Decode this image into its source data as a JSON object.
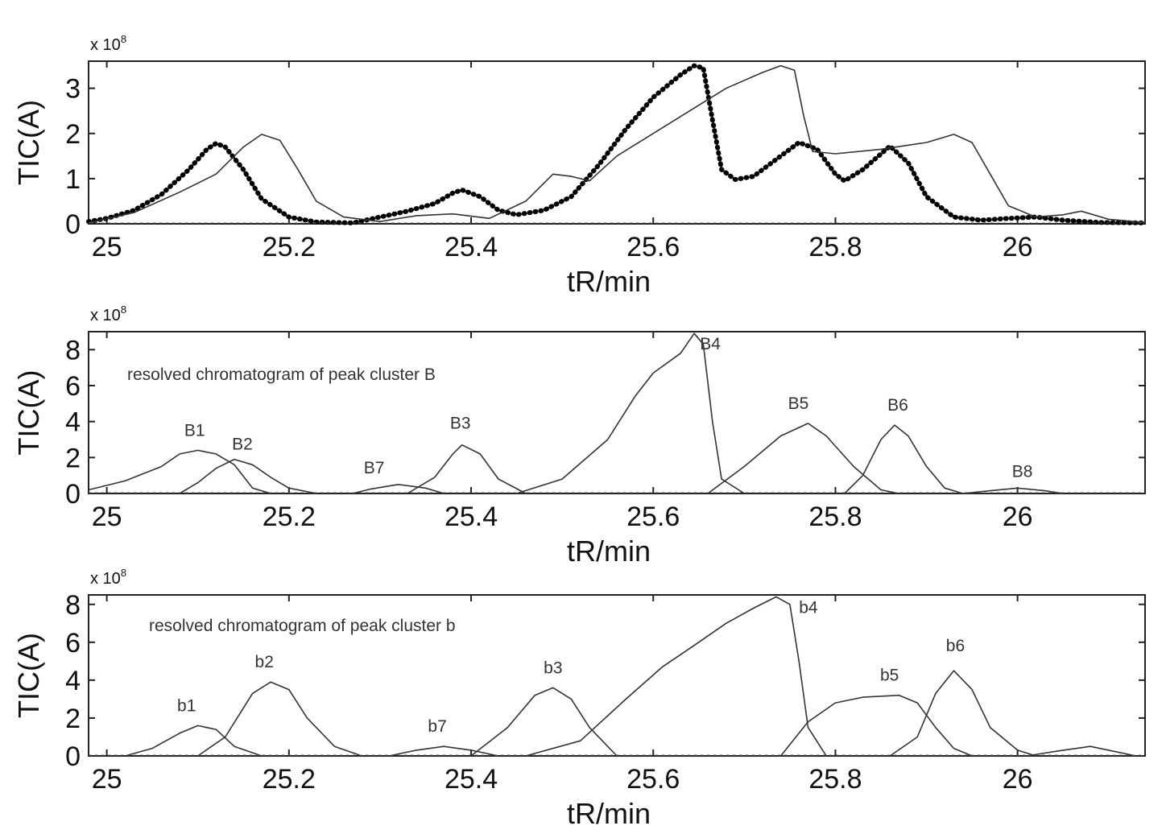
{
  "chart_data": [
    {
      "type": "line",
      "xlabel": "tR/min",
      "ylabel": "TIC(A)",
      "exponent_label": "x 10",
      "exponent_power": "8",
      "xlim": [
        24.98,
        26.14
      ],
      "ylim": [
        0,
        3.6
      ],
      "xticks": [
        25,
        25.2,
        25.4,
        25.6,
        25.8,
        26
      ],
      "xtick_labels": [
        "25",
        "25.2",
        "25.4",
        "25.6",
        "25.8",
        "26"
      ],
      "yticks": [
        0,
        1,
        2,
        3
      ],
      "ytick_labels": [
        "0",
        "1",
        "2",
        "3"
      ],
      "series": [
        {
          "style": "dots",
          "color": "#000000",
          "points": [
            [
              24.98,
              0.05
            ],
            [
              25.0,
              0.12
            ],
            [
              25.03,
              0.3
            ],
            [
              25.06,
              0.65
            ],
            [
              25.09,
              1.2
            ],
            [
              25.11,
              1.65
            ],
            [
              25.12,
              1.78
            ],
            [
              25.13,
              1.7
            ],
            [
              25.15,
              1.2
            ],
            [
              25.17,
              0.55
            ],
            [
              25.2,
              0.15
            ],
            [
              25.23,
              0.04
            ],
            [
              25.27,
              0.02
            ],
            [
              25.3,
              0.15
            ],
            [
              25.33,
              0.28
            ],
            [
              25.36,
              0.45
            ],
            [
              25.38,
              0.68
            ],
            [
              25.39,
              0.75
            ],
            [
              25.41,
              0.6
            ],
            [
              25.43,
              0.3
            ],
            [
              25.45,
              0.2
            ],
            [
              25.48,
              0.3
            ],
            [
              25.51,
              0.6
            ],
            [
              25.54,
              1.3
            ],
            [
              25.57,
              2.1
            ],
            [
              25.6,
              2.8
            ],
            [
              25.63,
              3.3
            ],
            [
              25.645,
              3.5
            ],
            [
              25.655,
              3.45
            ],
            [
              25.665,
              2.3
            ],
            [
              25.675,
              1.2
            ],
            [
              25.69,
              0.98
            ],
            [
              25.71,
              1.05
            ],
            [
              25.74,
              1.5
            ],
            [
              25.76,
              1.8
            ],
            [
              25.78,
              1.65
            ],
            [
              25.8,
              1.1
            ],
            [
              25.81,
              0.95
            ],
            [
              25.83,
              1.2
            ],
            [
              25.86,
              1.72
            ],
            [
              25.88,
              1.35
            ],
            [
              25.9,
              0.6
            ],
            [
              25.93,
              0.15
            ],
            [
              25.96,
              0.08
            ],
            [
              25.99,
              0.12
            ],
            [
              26.02,
              0.15
            ],
            [
              26.05,
              0.08
            ],
            [
              26.09,
              0.03
            ],
            [
              26.14,
              0.02
            ]
          ]
        },
        {
          "style": "line",
          "color": "#333333",
          "points": [
            [
              24.98,
              0.02
            ],
            [
              25.03,
              0.25
            ],
            [
              25.08,
              0.7
            ],
            [
              25.12,
              1.1
            ],
            [
              25.15,
              1.7
            ],
            [
              25.17,
              1.98
            ],
            [
              25.19,
              1.85
            ],
            [
              25.21,
              1.2
            ],
            [
              25.23,
              0.5
            ],
            [
              25.26,
              0.15
            ],
            [
              25.3,
              0.05
            ],
            [
              25.34,
              0.18
            ],
            [
              25.38,
              0.22
            ],
            [
              25.42,
              0.12
            ],
            [
              25.46,
              0.5
            ],
            [
              25.49,
              1.1
            ],
            [
              25.51,
              1.05
            ],
            [
              25.53,
              0.95
            ],
            [
              25.56,
              1.5
            ],
            [
              25.6,
              2.0
            ],
            [
              25.64,
              2.5
            ],
            [
              25.68,
              3.0
            ],
            [
              25.72,
              3.35
            ],
            [
              25.74,
              3.5
            ],
            [
              25.755,
              3.4
            ],
            [
              25.765,
              2.4
            ],
            [
              25.775,
              1.6
            ],
            [
              25.8,
              1.55
            ],
            [
              25.85,
              1.65
            ],
            [
              25.9,
              1.8
            ],
            [
              25.93,
              1.98
            ],
            [
              25.95,
              1.8
            ],
            [
              25.97,
              1.1
            ],
            [
              25.99,
              0.4
            ],
            [
              26.02,
              0.15
            ],
            [
              26.05,
              0.2
            ],
            [
              26.07,
              0.28
            ],
            [
              26.1,
              0.1
            ],
            [
              26.14,
              0.03
            ]
          ]
        }
      ]
    },
    {
      "type": "line",
      "xlabel": "tR/min",
      "ylabel": "TIC(A)",
      "exponent_label": "x 10",
      "exponent_power": "8",
      "annotation": "resolved chromatogram of peak cluster B",
      "xlim": [
        24.98,
        26.14
      ],
      "ylim": [
        0,
        9
      ],
      "xticks": [
        25,
        25.2,
        25.4,
        25.6,
        25.8,
        26
      ],
      "xtick_labels": [
        "25",
        "25.2",
        "25.4",
        "25.6",
        "25.8",
        "26"
      ],
      "yticks": [
        0,
        2,
        4,
        6,
        8
      ],
      "ytick_labels": [
        "0",
        "2",
        "4",
        "6",
        "8"
      ],
      "series": [
        {
          "name": "B1",
          "points": [
            [
              24.98,
              0.2
            ],
            [
              25.02,
              0.7
            ],
            [
              25.06,
              1.5
            ],
            [
              25.08,
              2.2
            ],
            [
              25.1,
              2.4
            ],
            [
              25.12,
              2.2
            ],
            [
              25.14,
              1.6
            ],
            [
              25.16,
              0.3
            ],
            [
              25.18,
              0.0
            ]
          ]
        },
        {
          "name": "B2",
          "points": [
            [
              25.08,
              0.0
            ],
            [
              25.1,
              0.6
            ],
            [
              25.12,
              1.4
            ],
            [
              25.14,
              1.9
            ],
            [
              25.16,
              1.6
            ],
            [
              25.18,
              0.9
            ],
            [
              25.2,
              0.3
            ],
            [
              25.23,
              0.0
            ]
          ]
        },
        {
          "name": "B7",
          "points": [
            [
              25.27,
              0.0
            ],
            [
              25.29,
              0.25
            ],
            [
              25.32,
              0.5
            ],
            [
              25.35,
              0.3
            ],
            [
              25.37,
              0.0
            ]
          ]
        },
        {
          "name": "B3",
          "points": [
            [
              25.33,
              0.0
            ],
            [
              25.36,
              0.9
            ],
            [
              25.38,
              2.2
            ],
            [
              25.39,
              2.7
            ],
            [
              25.41,
              2.2
            ],
            [
              25.43,
              0.8
            ],
            [
              25.46,
              0.0
            ]
          ]
        },
        {
          "name": "B4",
          "points": [
            [
              25.45,
              0.0
            ],
            [
              25.5,
              0.8
            ],
            [
              25.55,
              3.0
            ],
            [
              25.58,
              5.4
            ],
            [
              25.6,
              6.7
            ],
            [
              25.63,
              7.8
            ],
            [
              25.645,
              8.9
            ],
            [
              25.655,
              8.3
            ],
            [
              25.665,
              4.0
            ],
            [
              25.675,
              0.8
            ],
            [
              25.7,
              0.0
            ]
          ]
        },
        {
          "name": "B5",
          "points": [
            [
              25.66,
              0.0
            ],
            [
              25.7,
              1.5
            ],
            [
              25.74,
              3.2
            ],
            [
              25.77,
              3.9
            ],
            [
              25.79,
              3.2
            ],
            [
              25.82,
              1.5
            ],
            [
              25.85,
              0.2
            ],
            [
              25.87,
              0.0
            ]
          ]
        },
        {
          "name": "B6",
          "points": [
            [
              25.81,
              0.0
            ],
            [
              25.83,
              1.0
            ],
            [
              25.85,
              3.0
            ],
            [
              25.865,
              3.8
            ],
            [
              25.88,
              3.2
            ],
            [
              25.9,
              1.5
            ],
            [
              25.92,
              0.3
            ],
            [
              25.94,
              0.0
            ]
          ]
        },
        {
          "name": "B8",
          "points": [
            [
              25.94,
              0.0
            ],
            [
              25.97,
              0.15
            ],
            [
              26.0,
              0.3
            ],
            [
              26.03,
              0.15
            ],
            [
              26.05,
              0.0
            ]
          ]
        }
      ]
    },
    {
      "type": "line",
      "xlabel": "tR/min",
      "ylabel": "TIC(A)",
      "exponent_label": "x 10",
      "exponent_power": "8",
      "annotation": "resolved chromatogram of peak cluster b",
      "xlim": [
        24.98,
        26.14
      ],
      "ylim": [
        0,
        8.5
      ],
      "xticks": [
        25,
        25.2,
        25.4,
        25.6,
        25.8,
        26
      ],
      "xtick_labels": [
        "25",
        "25.2",
        "25.4",
        "25.6",
        "25.8",
        "26"
      ],
      "yticks": [
        0,
        2,
        4,
        6,
        8
      ],
      "ytick_labels": [
        "0",
        "2",
        "4",
        "6",
        "8"
      ],
      "series": [
        {
          "name": "b1",
          "points": [
            [
              25.02,
              0.0
            ],
            [
              25.05,
              0.4
            ],
            [
              25.08,
              1.2
            ],
            [
              25.1,
              1.6
            ],
            [
              25.12,
              1.4
            ],
            [
              25.14,
              0.5
            ],
            [
              25.17,
              0.0
            ]
          ]
        },
        {
          "name": "b2",
          "points": [
            [
              25.1,
              0.0
            ],
            [
              25.13,
              1.0
            ],
            [
              25.16,
              3.3
            ],
            [
              25.18,
              3.9
            ],
            [
              25.2,
              3.5
            ],
            [
              25.22,
              2.0
            ],
            [
              25.25,
              0.5
            ],
            [
              25.28,
              0.0
            ]
          ]
        },
        {
          "name": "b7",
          "points": [
            [
              25.31,
              0.0
            ],
            [
              25.34,
              0.3
            ],
            [
              25.37,
              0.5
            ],
            [
              25.4,
              0.3
            ],
            [
              25.43,
              0.0
            ]
          ]
        },
        {
          "name": "b3",
          "points": [
            [
              25.4,
              0.0
            ],
            [
              25.44,
              1.5
            ],
            [
              25.47,
              3.2
            ],
            [
              25.49,
              3.6
            ],
            [
              25.51,
              3.0
            ],
            [
              25.53,
              1.5
            ],
            [
              25.56,
              0.0
            ]
          ]
        },
        {
          "name": "b4",
          "points": [
            [
              25.46,
              0.0
            ],
            [
              25.52,
              0.8
            ],
            [
              25.57,
              3.0
            ],
            [
              25.61,
              4.7
            ],
            [
              25.65,
              6.0
            ],
            [
              25.68,
              7.0
            ],
            [
              25.71,
              7.8
            ],
            [
              25.735,
              8.4
            ],
            [
              25.75,
              8.0
            ],
            [
              25.76,
              5.0
            ],
            [
              25.77,
              1.5
            ],
            [
              25.79,
              0.0
            ]
          ]
        },
        {
          "name": "b5",
          "points": [
            [
              25.74,
              0.0
            ],
            [
              25.77,
              1.8
            ],
            [
              25.8,
              2.8
            ],
            [
              25.83,
              3.1
            ],
            [
              25.87,
              3.2
            ],
            [
              25.89,
              2.8
            ],
            [
              25.91,
              1.5
            ],
            [
              25.93,
              0.4
            ],
            [
              25.95,
              0.0
            ]
          ]
        },
        {
          "name": "b6",
          "points": [
            [
              25.86,
              0.0
            ],
            [
              25.89,
              1.0
            ],
            [
              25.91,
              3.3
            ],
            [
              25.93,
              4.5
            ],
            [
              25.95,
              3.5
            ],
            [
              25.97,
              1.5
            ],
            [
              26.0,
              0.3
            ],
            [
              26.02,
              0.0
            ]
          ]
        },
        {
          "name": "",
          "points": [
            [
              26.01,
              0.0
            ],
            [
              26.05,
              0.3
            ],
            [
              26.08,
              0.5
            ],
            [
              26.11,
              0.2
            ],
            [
              26.13,
              0.0
            ]
          ]
        }
      ]
    }
  ]
}
